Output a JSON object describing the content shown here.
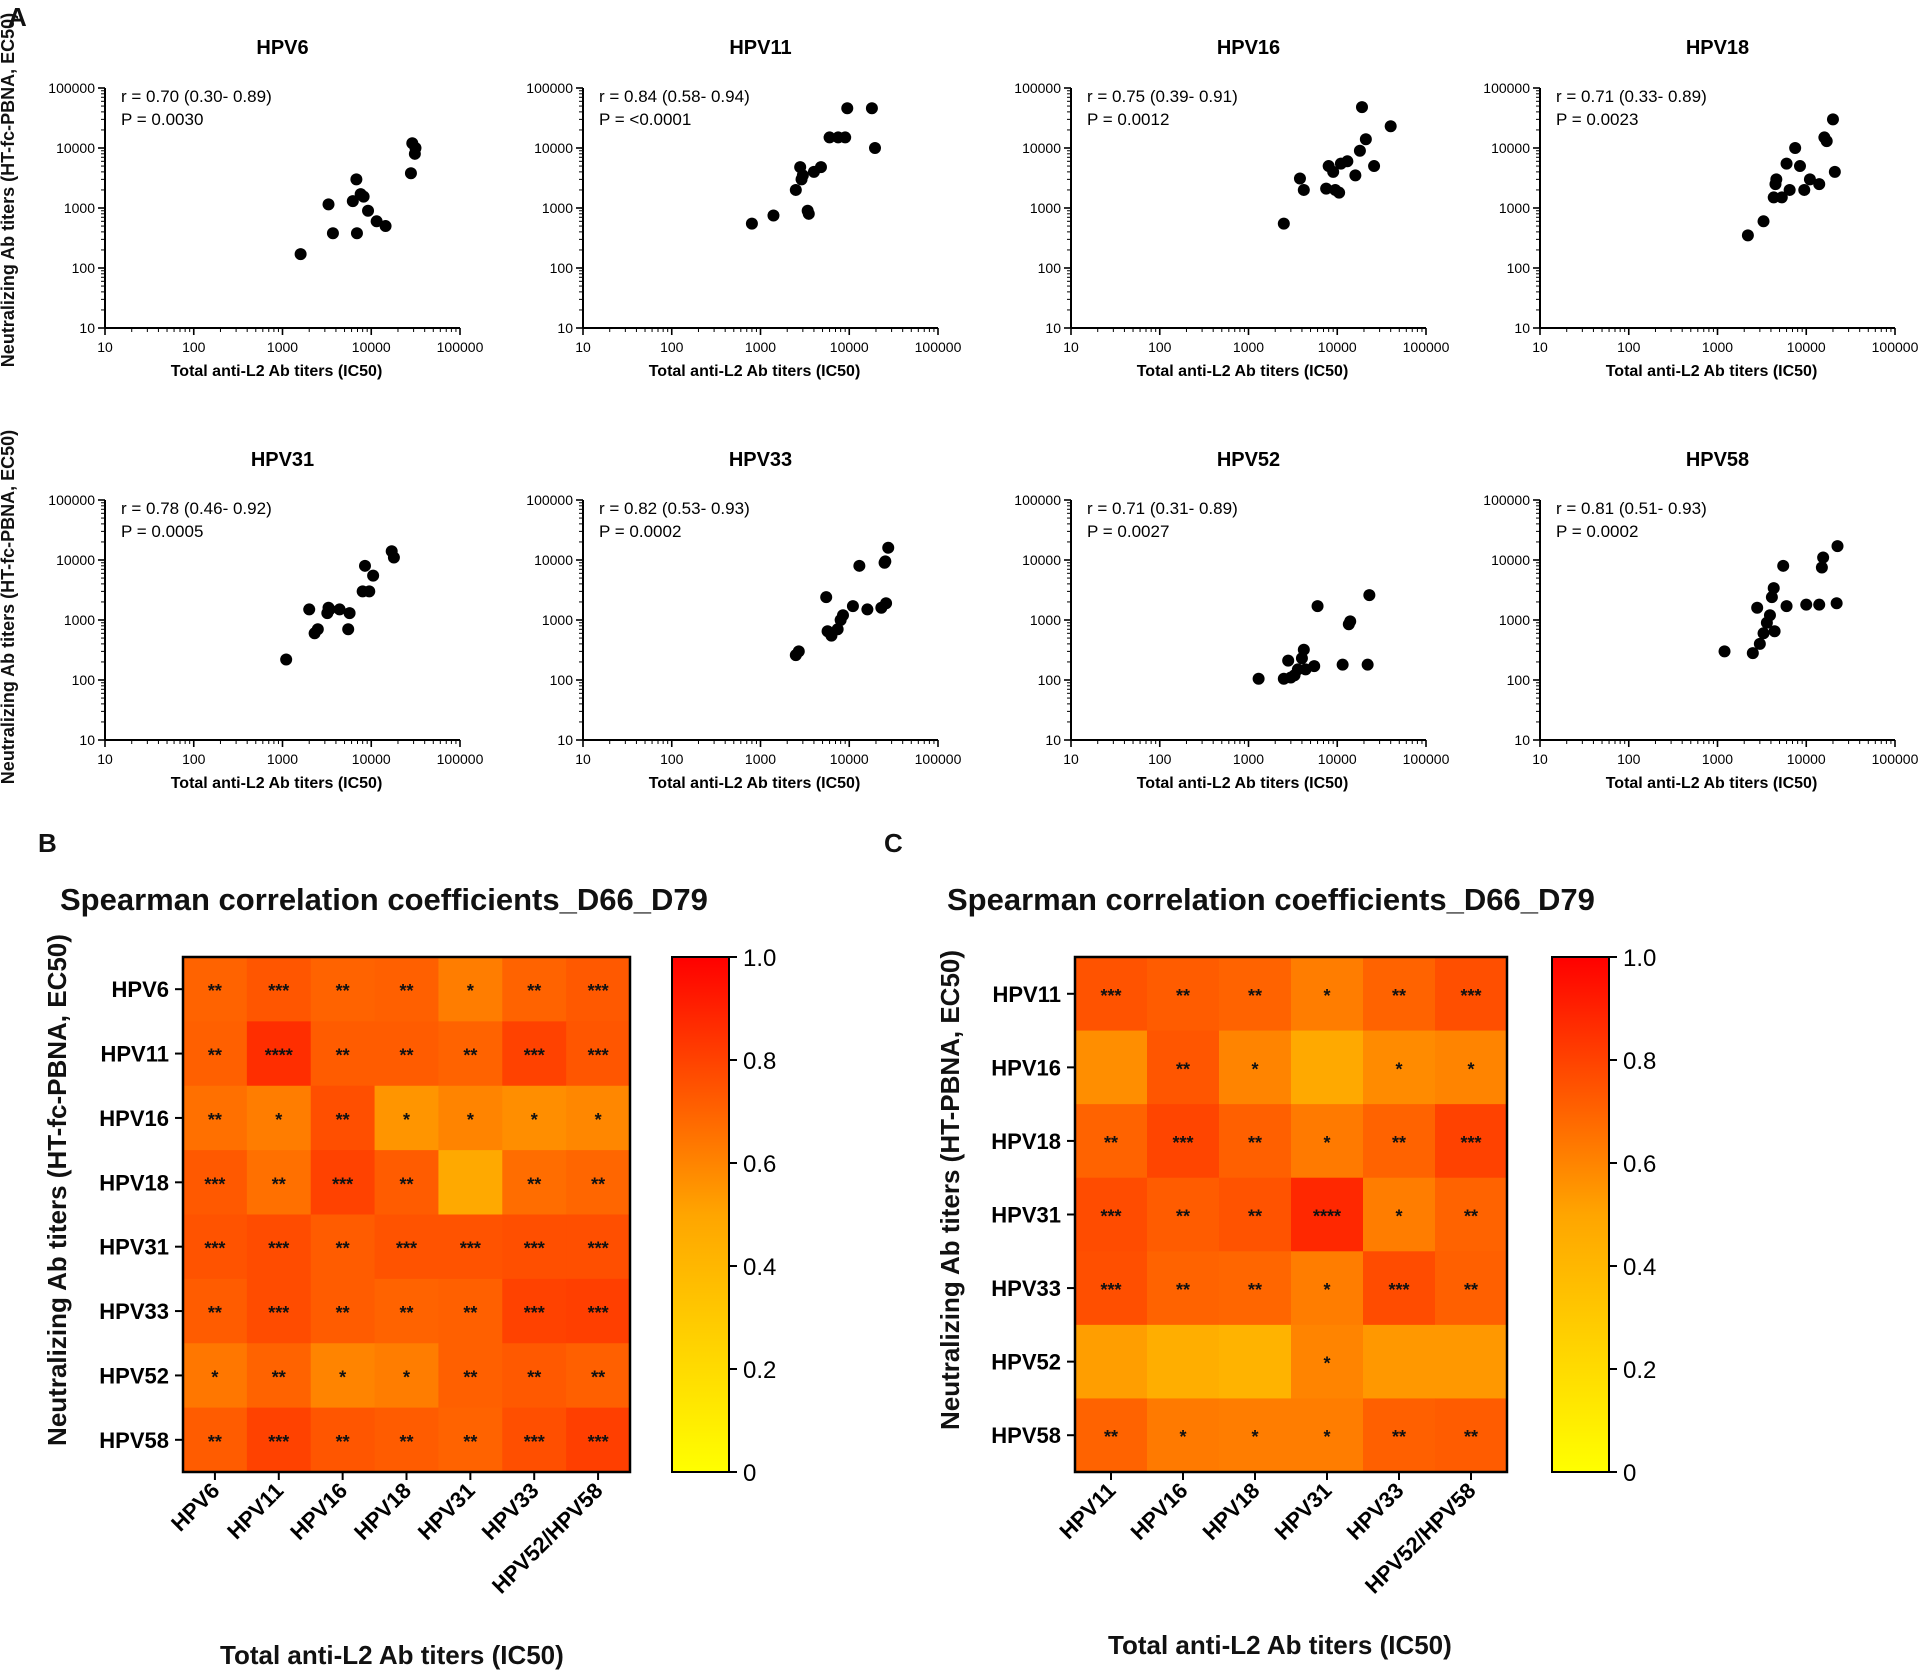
{
  "panel_labels": {
    "a": "A",
    "b": "B",
    "c": "C"
  },
  "panel_a": {
    "shared_ylabel": "Neutralizing Ab titers (HT-fc-PBNA, EC50)",
    "xlabel": "Total anti-L2 Ab titers (IC50)"
  },
  "panel_b": {
    "ylabel": "Neutralizing Ab titers (HT-fc-PBNA, EC50)",
    "xlabel": "Total anti-L2 Ab titers (IC50)"
  },
  "panel_c": {
    "ylabel": "Neutralizing Ab titers (HT-PBNA, EC50)",
    "xlabel": "Total anti-L2 Ab titers (IC50)"
  },
  "chart_data": [
    {
      "type": "scatter",
      "title": "HPV6",
      "xscale": "log",
      "yscale": "log",
      "xlim": [
        10,
        100000
      ],
      "ylim": [
        10,
        100000
      ],
      "xticks": [
        "10",
        "100",
        "1000",
        "10000",
        "100000"
      ],
      "yticks": [
        "10",
        "100",
        "1000",
        "10000",
        "100000"
      ],
      "xlabel": "Total anti-L2 Ab titers (IC50)",
      "ylabel": "Neutralizing Ab titers (HT-fc-PBNA, EC50)",
      "annotation_r": "r = 0.70 (0.30- 0.89)",
      "annotation_p": "P = 0.0030",
      "points": [
        [
          1600,
          170
        ],
        [
          3300,
          1150
        ],
        [
          3700,
          380
        ],
        [
          6200,
          1300
        ],
        [
          6800,
          3000
        ],
        [
          6900,
          380
        ],
        [
          7600,
          1700
        ],
        [
          8200,
          1550
        ],
        [
          9200,
          900
        ],
        [
          11500,
          600
        ],
        [
          14500,
          500
        ],
        [
          28000,
          3800
        ],
        [
          29000,
          12000
        ],
        [
          31000,
          8000
        ],
        [
          31500,
          10000
        ]
      ]
    },
    {
      "type": "scatter",
      "title": "HPV11",
      "xscale": "log",
      "yscale": "log",
      "xlim": [
        10,
        100000
      ],
      "ylim": [
        10,
        100000
      ],
      "xticks": [
        "10",
        "100",
        "1000",
        "10000",
        "100000"
      ],
      "yticks": [
        "10",
        "100",
        "1000",
        "10000",
        "100000"
      ],
      "xlabel": "Total anti-L2 Ab titers (IC50)",
      "ylabel": "Neutralizing Ab titers (HT-fc-PBNA, EC50)",
      "annotation_r": "r = 0.84 (0.58- 0.94)",
      "annotation_p": "P = <0.0001",
      "points": [
        [
          800,
          550
        ],
        [
          1400,
          750
        ],
        [
          2500,
          2000
        ],
        [
          2800,
          4800
        ],
        [
          2900,
          3000
        ],
        [
          3000,
          3500
        ],
        [
          3400,
          900
        ],
        [
          3500,
          800
        ],
        [
          4000,
          4000
        ],
        [
          4800,
          4800
        ],
        [
          6000,
          15000
        ],
        [
          7500,
          15000
        ],
        [
          9000,
          15000
        ],
        [
          9500,
          46000
        ],
        [
          18000,
          46000
        ],
        [
          19500,
          10000
        ]
      ]
    },
    {
      "type": "scatter",
      "title": "HPV16",
      "xscale": "log",
      "yscale": "log",
      "xlim": [
        10,
        100000
      ],
      "ylim": [
        10,
        100000
      ],
      "xticks": [
        "10",
        "100",
        "1000",
        "10000",
        "100000"
      ],
      "yticks": [
        "10",
        "100",
        "1000",
        "10000",
        "100000"
      ],
      "xlabel": "Total anti-L2 Ab titers (IC50)",
      "ylabel": "Neutralizing Ab titers (HT-fc-PBNA, EC50)",
      "annotation_r": "r = 0.75 (0.39- 0.91)",
      "annotation_p": "P = 0.0012",
      "points": [
        [
          2500,
          550
        ],
        [
          3800,
          3100
        ],
        [
          4200,
          2000
        ],
        [
          7500,
          2100
        ],
        [
          8000,
          5000
        ],
        [
          9000,
          4000
        ],
        [
          9500,
          2000
        ],
        [
          10500,
          1800
        ],
        [
          11000,
          5500
        ],
        [
          13000,
          6000
        ],
        [
          16000,
          3500
        ],
        [
          18000,
          9000
        ],
        [
          19000,
          48000
        ],
        [
          21000,
          14000
        ],
        [
          26000,
          5000
        ],
        [
          40000,
          23000
        ]
      ]
    },
    {
      "type": "scatter",
      "title": "HPV18",
      "xscale": "log",
      "yscale": "log",
      "xlim": [
        10,
        100000
      ],
      "ylim": [
        10,
        100000
      ],
      "xticks": [
        "10",
        "100",
        "1000",
        "10000",
        "100000"
      ],
      "yticks": [
        "10",
        "100",
        "1000",
        "10000",
        "100000"
      ],
      "xlabel": "Total anti-L2 Ab titers (IC50)",
      "ylabel": "Neutralizing Ab titers (HT-fc-PBNA, EC50)",
      "annotation_r": "r = 0.71 (0.33- 0.89)",
      "annotation_p": "P = 0.0023",
      "points": [
        [
          2200,
          350
        ],
        [
          3300,
          600
        ],
        [
          4300,
          1500
        ],
        [
          4500,
          2500
        ],
        [
          4600,
          3000
        ],
        [
          5300,
          1500
        ],
        [
          6000,
          5500
        ],
        [
          6500,
          2000
        ],
        [
          7500,
          10000
        ],
        [
          8500,
          5000
        ],
        [
          9500,
          2000
        ],
        [
          11000,
          3000
        ],
        [
          14000,
          2500
        ],
        [
          16000,
          15000
        ],
        [
          17000,
          13000
        ],
        [
          20000,
          30000
        ],
        [
          21000,
          4000
        ]
      ]
    },
    {
      "type": "scatter",
      "title": "HPV31",
      "xscale": "log",
      "yscale": "log",
      "xlim": [
        10,
        100000
      ],
      "ylim": [
        10,
        100000
      ],
      "xticks": [
        "10",
        "100",
        "1000",
        "10000",
        "100000"
      ],
      "yticks": [
        "10",
        "100",
        "1000",
        "10000",
        "100000"
      ],
      "xlabel": "Total anti-L2 Ab titers (IC50)",
      "ylabel": "Neutralizing Ab titers (HT-fc-PBNA, EC50)",
      "annotation_r": "r = 0.78 (0.46- 0.92)",
      "annotation_p": "P = 0.0005",
      "points": [
        [
          1100,
          220
        ],
        [
          2000,
          1500
        ],
        [
          2300,
          600
        ],
        [
          2500,
          700
        ],
        [
          3200,
          1300
        ],
        [
          3300,
          1600
        ],
        [
          3400,
          1500
        ],
        [
          4400,
          1500
        ],
        [
          5500,
          700
        ],
        [
          5700,
          1300
        ],
        [
          8000,
          3000
        ],
        [
          8500,
          8000
        ],
        [
          9500,
          3000
        ],
        [
          10500,
          5500
        ],
        [
          17000,
          14000
        ],
        [
          18000,
          11000
        ]
      ]
    },
    {
      "type": "scatter",
      "title": "HPV33",
      "xscale": "log",
      "yscale": "log",
      "xlim": [
        10,
        100000
      ],
      "ylim": [
        10,
        100000
      ],
      "xticks": [
        "10",
        "100",
        "1000",
        "10000",
        "100000"
      ],
      "yticks": [
        "10",
        "100",
        "1000",
        "10000",
        "100000"
      ],
      "xlabel": "Total anti-L2 Ab titers (IC50)",
      "ylabel": "Neutralizing Ab titers (HT-fc-PBNA, EC50)",
      "annotation_r": "r = 0.82 (0.53- 0.93)",
      "annotation_p": "P = 0.0002",
      "points": [
        [
          2500,
          260
        ],
        [
          2700,
          300
        ],
        [
          5500,
          2400
        ],
        [
          5700,
          650
        ],
        [
          6300,
          550
        ],
        [
          7400,
          700
        ],
        [
          8000,
          1000
        ],
        [
          8500,
          1200
        ],
        [
          11000,
          1700
        ],
        [
          13000,
          8000
        ],
        [
          16000,
          1500
        ],
        [
          23000,
          1600
        ],
        [
          25000,
          9000
        ],
        [
          25500,
          9500
        ],
        [
          26000,
          1900
        ],
        [
          27500,
          16000
        ]
      ]
    },
    {
      "type": "scatter",
      "title": "HPV52",
      "xscale": "log",
      "yscale": "log",
      "xlim": [
        10,
        100000
      ],
      "ylim": [
        10,
        100000
      ],
      "xticks": [
        "10",
        "100",
        "1000",
        "10000",
        "100000"
      ],
      "yticks": [
        "10",
        "100",
        "1000",
        "10000",
        "100000"
      ],
      "xlabel": "Total anti-L2 Ab titers (IC50)",
      "ylabel": "Neutralizing Ab titers (HT-fc-PBNA, EC50)",
      "annotation_r": "r = 0.71 (0.31- 0.89)",
      "annotation_p": "P = 0.0027",
      "points": [
        [
          1300,
          105
        ],
        [
          2500,
          105
        ],
        [
          2800,
          210
        ],
        [
          3000,
          110
        ],
        [
          3300,
          120
        ],
        [
          3600,
          150
        ],
        [
          4000,
          230
        ],
        [
          4200,
          320
        ],
        [
          4400,
          150
        ],
        [
          5500,
          170
        ],
        [
          6000,
          1700
        ],
        [
          11500,
          180
        ],
        [
          13500,
          850
        ],
        [
          14000,
          950
        ],
        [
          22000,
          180
        ],
        [
          23000,
          2600
        ]
      ]
    },
    {
      "type": "scatter",
      "title": "HPV58",
      "xscale": "log",
      "yscale": "log",
      "xlim": [
        10,
        100000
      ],
      "ylim": [
        10,
        100000
      ],
      "xticks": [
        "10",
        "100",
        "1000",
        "10000",
        "100000"
      ],
      "yticks": [
        "10",
        "100",
        "1000",
        "10000",
        "100000"
      ],
      "xlabel": "Total anti-L2 Ab titers (IC50)",
      "ylabel": "Neutralizing Ab titers (HT-fc-PBNA, EC50)",
      "annotation_r": "r = 0.81 (0.51- 0.93)",
      "annotation_p": "P = 0.0002",
      "points": [
        [
          1200,
          300
        ],
        [
          2500,
          280
        ],
        [
          2800,
          1600
        ],
        [
          3000,
          400
        ],
        [
          3300,
          600
        ],
        [
          3600,
          900
        ],
        [
          3900,
          1200
        ],
        [
          4100,
          2400
        ],
        [
          4300,
          3400
        ],
        [
          4400,
          650
        ],
        [
          5500,
          8000
        ],
        [
          6000,
          1700
        ],
        [
          10000,
          1800
        ],
        [
          14000,
          1800
        ],
        [
          15000,
          7500
        ],
        [
          15500,
          11000
        ],
        [
          22000,
          1900
        ],
        [
          22500,
          17000
        ]
      ]
    },
    {
      "type": "heatmap",
      "title": "Spearman correlation coefficients_D66_D79",
      "xlabel": "Total anti-L2 Ab titers (IC50)",
      "ylabel": "Neutralizing Ab titers (HT-fc-PBNA, EC50)",
      "cols": [
        "HPV6",
        "HPV11",
        "HPV16",
        "HPV18",
        "HPV31",
        "HPV33",
        "HPV52/HPV58"
      ],
      "rows": [
        "HPV6",
        "HPV11",
        "HPV16",
        "HPV18",
        "HPV31",
        "HPV33",
        "HPV52",
        "HPV58"
      ],
      "values": [
        [
          0.7,
          0.74,
          0.7,
          0.71,
          0.62,
          0.7,
          0.73
        ],
        [
          0.71,
          0.86,
          0.72,
          0.72,
          0.7,
          0.8,
          0.74
        ],
        [
          0.66,
          0.62,
          0.76,
          0.55,
          0.6,
          0.57,
          0.59
        ],
        [
          0.73,
          0.66,
          0.8,
          0.72,
          0.48,
          0.67,
          0.69
        ],
        [
          0.75,
          0.77,
          0.72,
          0.75,
          0.75,
          0.76,
          0.76
        ],
        [
          0.72,
          0.77,
          0.72,
          0.7,
          0.71,
          0.8,
          0.81
        ],
        [
          0.64,
          0.7,
          0.6,
          0.62,
          0.71,
          0.73,
          0.71
        ],
        [
          0.72,
          0.8,
          0.74,
          0.72,
          0.7,
          0.76,
          0.81
        ]
      ],
      "stars": [
        [
          "**",
          "***",
          "**",
          "**",
          "*",
          "**",
          "***"
        ],
        [
          "**",
          "****",
          "**",
          "**",
          "**",
          "***",
          "***"
        ],
        [
          "**",
          "*",
          "**",
          "*",
          "*",
          "*",
          "*"
        ],
        [
          "***",
          "**",
          "***",
          "**",
          "",
          "**",
          "**"
        ],
        [
          "***",
          "***",
          "**",
          "***",
          "***",
          "***",
          "***"
        ],
        [
          "**",
          "***",
          "**",
          "**",
          "**",
          "***",
          "***"
        ],
        [
          "*",
          "**",
          "*",
          "*",
          "**",
          "**",
          "**"
        ],
        [
          "**",
          "***",
          "**",
          "**",
          "**",
          "***",
          "***"
        ]
      ],
      "colorbar": {
        "min": 0,
        "max": 1,
        "ticks": [
          "0",
          "0.2",
          "0.4",
          "0.6",
          "0.8",
          "1.0"
        ],
        "colors": [
          "#ffff00",
          "#ffa500",
          "#ff0000"
        ]
      }
    },
    {
      "type": "heatmap",
      "title": "Spearman correlation coefficients_D66_D79",
      "xlabel": "Total anti-L2 Ab titers (IC50)",
      "ylabel": "Neutralizing Ab titers (HT-PBNA, EC50)",
      "cols": [
        "HPV11",
        "HPV16",
        "HPV18",
        "HPV31",
        "HPV33",
        "HPV52/HPV58"
      ],
      "rows": [
        "HPV11",
        "HPV16",
        "HPV18",
        "HPV31",
        "HPV33",
        "HPV52",
        "HPV58"
      ],
      "values": [
        [
          0.75,
          0.72,
          0.7,
          0.62,
          0.7,
          0.76
        ],
        [
          0.57,
          0.74,
          0.6,
          0.48,
          0.58,
          0.6
        ],
        [
          0.7,
          0.79,
          0.71,
          0.63,
          0.7,
          0.8
        ],
        [
          0.77,
          0.72,
          0.75,
          0.88,
          0.62,
          0.7
        ],
        [
          0.76,
          0.7,
          0.69,
          0.62,
          0.77,
          0.71
        ],
        [
          0.52,
          0.45,
          0.42,
          0.6,
          0.54,
          0.54
        ],
        [
          0.7,
          0.63,
          0.62,
          0.62,
          0.71,
          0.72
        ]
      ],
      "stars": [
        [
          "***",
          "**",
          "**",
          "*",
          "**",
          "***"
        ],
        [
          "",
          "**",
          "*",
          "",
          "*",
          "*"
        ],
        [
          "**",
          "***",
          "**",
          "*",
          "**",
          "***"
        ],
        [
          "***",
          "**",
          "**",
          "****",
          "*",
          "**"
        ],
        [
          "***",
          "**",
          "**",
          "*",
          "***",
          "**"
        ],
        [
          "",
          "",
          "",
          "*",
          "",
          ""
        ],
        [
          "**",
          "*",
          "*",
          "*",
          "**",
          "**"
        ]
      ],
      "colorbar": {
        "min": 0,
        "max": 1,
        "ticks": [
          "0",
          "0.2",
          "0.4",
          "0.6",
          "0.8",
          "1.0"
        ],
        "colors": [
          "#ffff00",
          "#ffa500",
          "#ff0000"
        ]
      }
    }
  ]
}
